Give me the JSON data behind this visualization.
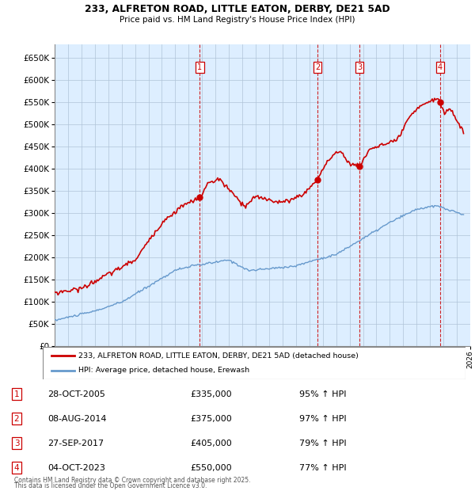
{
  "title1": "233, ALFRETON ROAD, LITTLE EATON, DERBY, DE21 5AD",
  "title2": "Price paid vs. HM Land Registry's House Price Index (HPI)",
  "legend_line1": "233, ALFRETON ROAD, LITTLE EATON, DERBY, DE21 5AD (detached house)",
  "legend_line2": "HPI: Average price, detached house, Erewash",
  "footer1": "Contains HM Land Registry data © Crown copyright and database right 2025.",
  "footer2": "This data is licensed under the Open Government Licence v3.0.",
  "sale_markers": [
    {
      "num": 1,
      "date": "28-OCT-2005",
      "price": 335000,
      "price_str": "£335,000",
      "pct": "95%",
      "dir": "↑",
      "x_year": 2005.83
    },
    {
      "num": 2,
      "date": "08-AUG-2014",
      "price": 375000,
      "price_str": "£375,000",
      "pct": "97%",
      "dir": "↑",
      "x_year": 2014.6
    },
    {
      "num": 3,
      "date": "27-SEP-2017",
      "price": 405000,
      "price_str": "£405,000",
      "pct": "79%",
      "dir": "↑",
      "x_year": 2017.75
    },
    {
      "num": 4,
      "date": "04-OCT-2023",
      "price": 550000,
      "price_str": "£550,000",
      "pct": "77%",
      "dir": "↑",
      "x_year": 2023.75
    }
  ],
  "hpi_color": "#6699cc",
  "price_color": "#cc0000",
  "bg_color": "#ddeeff",
  "grid_color": "#b0c4d8",
  "ylim": [
    0,
    680000
  ],
  "xlim": [
    1995,
    2026
  ],
  "yticks": [
    0,
    50000,
    100000,
    150000,
    200000,
    250000,
    300000,
    350000,
    400000,
    450000,
    500000,
    550000,
    600000,
    650000
  ]
}
